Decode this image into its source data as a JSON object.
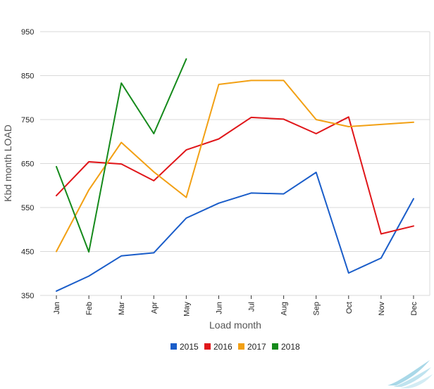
{
  "chart_data": {
    "type": "line",
    "title": "",
    "xlabel": "Load month",
    "ylabel": "Kbd month LOAD",
    "categories": [
      "Jan",
      "Feb",
      "Mar",
      "Apr",
      "May",
      "Jun",
      "Jul",
      "Aug",
      "Sep",
      "Oct",
      "Nov",
      "Dec"
    ],
    "ylim": [
      350,
      950
    ],
    "yticks": [
      350,
      450,
      550,
      650,
      750,
      850,
      950
    ],
    "yticks_labels": [
      "350",
      "450",
      "550",
      "650",
      "750",
      "850",
      "950"
    ],
    "grid": true,
    "legend_position": "bottom",
    "series": [
      {
        "name": "2015",
        "color": "#1a5dc9",
        "values": [
          360,
          394,
          440,
          447,
          526,
          560,
          583,
          581,
          630,
          401,
          435,
          570
        ]
      },
      {
        "name": "2016",
        "color": "#e0161a",
        "values": [
          577,
          654,
          649,
          611,
          681,
          706,
          755,
          751,
          718,
          756,
          490,
          508
        ]
      },
      {
        "name": "2017",
        "color": "#f2a014",
        "values": [
          450,
          590,
          698,
          631,
          573,
          830,
          839,
          839,
          750,
          734,
          739,
          744
        ]
      },
      {
        "name": "2018",
        "color": "#158a1b",
        "values": [
          643,
          449,
          833,
          718,
          888,
          null,
          null,
          null,
          null,
          null,
          null,
          null
        ]
      }
    ]
  }
}
